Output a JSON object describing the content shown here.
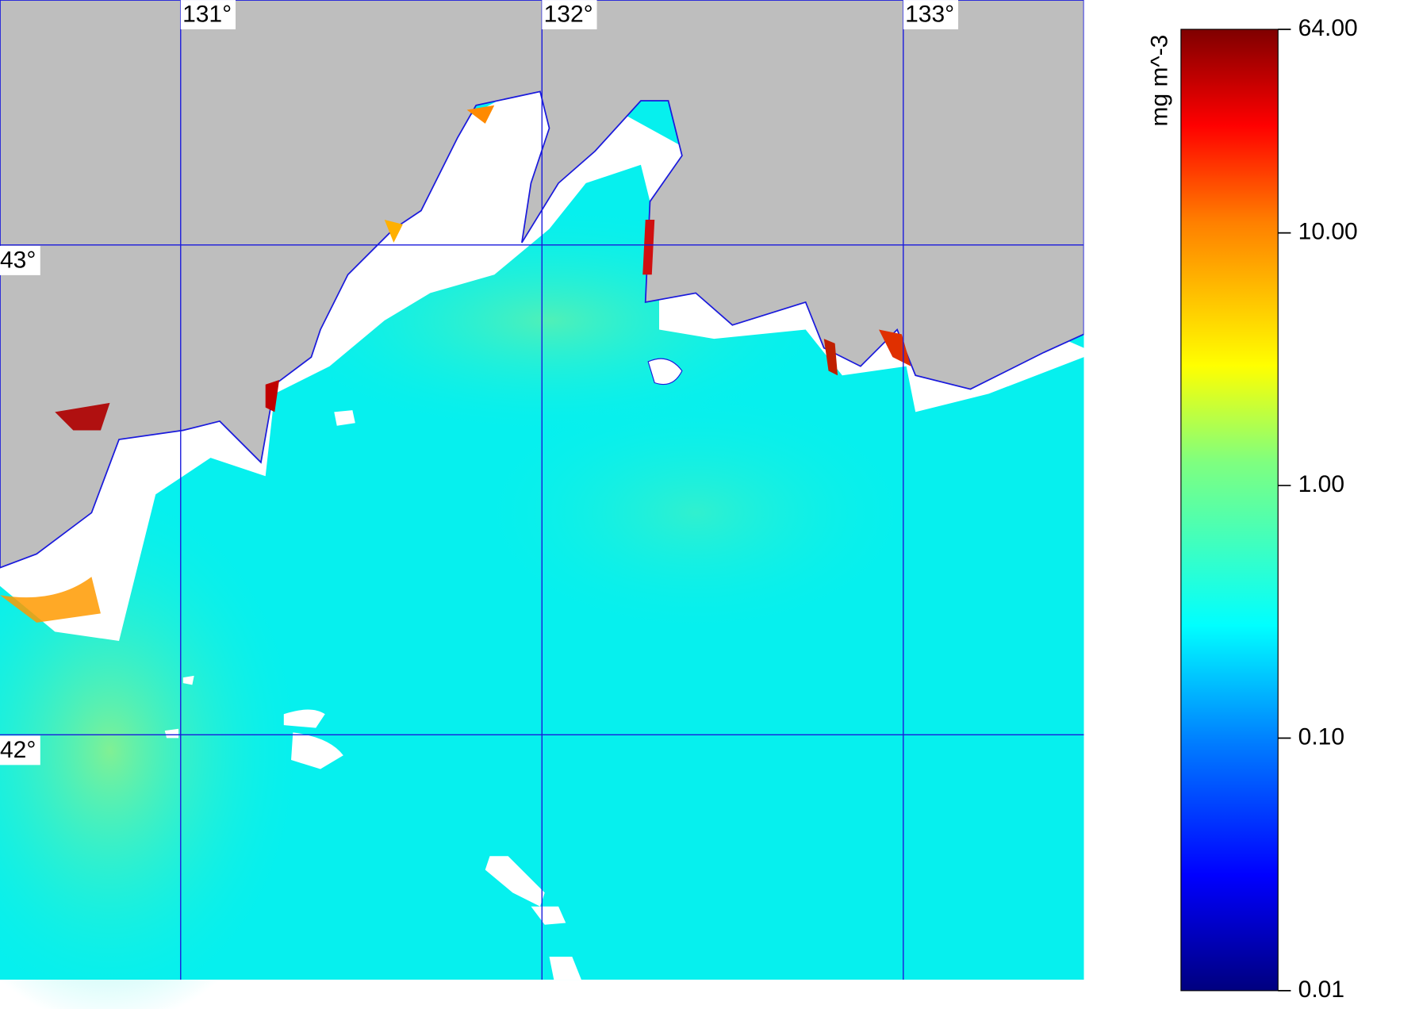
{
  "map": {
    "lonlim": [
      130.5,
      133.5
    ],
    "latlim": [
      41.5,
      43.5
    ],
    "lon_ticks": [
      {
        "value": 131,
        "label": "131°"
      },
      {
        "value": 132,
        "label": "132°"
      },
      {
        "value": 133,
        "label": "133°"
      }
    ],
    "lat_ticks": [
      {
        "value": 43,
        "label": "43°"
      },
      {
        "value": 42,
        "label": "42°"
      }
    ],
    "grid_color": "#1a1adc"
  },
  "colorbar": {
    "label": "mg m^-3",
    "scale": "log",
    "lim": [
      0.01,
      64
    ],
    "ticks": [
      {
        "value": 64,
        "label": "64.00"
      },
      {
        "value": 10,
        "label": "10.00"
      },
      {
        "value": 1,
        "label": "1.00"
      },
      {
        "value": 0.1,
        "label": "0.10"
      },
      {
        "value": 0.01,
        "label": "0.01"
      }
    ]
  }
}
